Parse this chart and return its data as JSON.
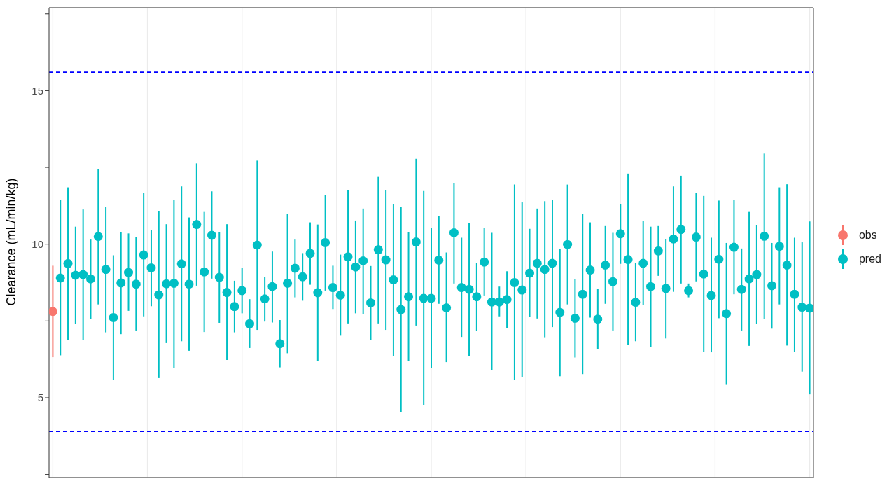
{
  "chart_data": {
    "type": "scatter",
    "ylabel": "Clearance (mL/min/kg)",
    "categories": [
      null,
      null,
      null,
      null,
      null,
      null,
      null,
      null,
      null,
      null,
      null,
      null,
      null,
      null,
      null,
      null,
      null,
      null,
      null,
      null,
      null,
      null,
      null,
      null,
      null,
      null,
      null,
      null,
      null,
      null,
      null,
      null,
      null,
      null,
      null,
      null,
      null,
      null,
      null,
      null,
      null,
      null,
      null,
      null,
      null,
      null,
      null,
      null,
      null,
      null,
      null,
      null,
      null,
      null,
      null,
      null,
      null,
      null,
      null,
      null,
      null,
      null,
      null,
      null,
      null,
      null,
      null,
      null,
      null,
      null,
      null,
      null,
      null,
      null,
      null,
      null,
      null,
      null,
      null,
      null,
      null,
      null,
      null,
      null,
      null,
      null,
      null,
      null,
      null,
      null,
      null,
      null,
      null,
      null,
      null,
      null,
      null,
      null,
      null,
      null,
      null
    ],
    "ylim": [
      2.4,
      17.7
    ],
    "yticks": [
      {
        "value": 2.5,
        "label": null
      },
      5,
      {
        "value": 7.5,
        "label": null
      },
      10,
      {
        "value": 12.5,
        "label": null
      },
      15,
      {
        "value": 17.5,
        "label": null
      }
    ],
    "grid": true,
    "legend": "right",
    "marker": "circle",
    "ref_lines": [
      {
        "axis": "y",
        "value": 15.6,
        "color": "#0000ff",
        "line_style": "dashed"
      },
      {
        "axis": "y",
        "value": 3.9,
        "color": "#0000ff",
        "line_style": "dashed"
      }
    ],
    "series": [
      {
        "name": "obs",
        "color": "#f8766d",
        "values": [
          7.81,
          null,
          null,
          null,
          null,
          null,
          null,
          null,
          null,
          null,
          null,
          null,
          null,
          null,
          null,
          null,
          null,
          null,
          null,
          null,
          null,
          null,
          null,
          null,
          null,
          null,
          null,
          null,
          null,
          null,
          null,
          null,
          null,
          null,
          null,
          null,
          null,
          null,
          null,
          null,
          null,
          null,
          null,
          null,
          null,
          null,
          null,
          null,
          null,
          null,
          null,
          null,
          null,
          null,
          null,
          null,
          null,
          null,
          null,
          null,
          null,
          null,
          null,
          null,
          null,
          null,
          null,
          null,
          null,
          null,
          null,
          null,
          null,
          null,
          null,
          null,
          null,
          null,
          null,
          null,
          null,
          null,
          null,
          null,
          null,
          null,
          null,
          null,
          null,
          null,
          null,
          null,
          null,
          null,
          null,
          null,
          null,
          null,
          null,
          null,
          null
        ],
        "errors": [
          [
            6.32,
            9.3
          ],
          null,
          null,
          null,
          null,
          null,
          null,
          null,
          null,
          null,
          null,
          null,
          null,
          null,
          null,
          null,
          null,
          null,
          null,
          null,
          null,
          null,
          null,
          null,
          null,
          null,
          null,
          null,
          null,
          null,
          null,
          null,
          null,
          null,
          null,
          null,
          null,
          null,
          null,
          null,
          null,
          null,
          null,
          null,
          null,
          null,
          null,
          null,
          null,
          null,
          null,
          null,
          null,
          null,
          null,
          null,
          null,
          null,
          null,
          null,
          null,
          null,
          null,
          null,
          null,
          null,
          null,
          null,
          null,
          null,
          null,
          null,
          null,
          null,
          null,
          null,
          null,
          null,
          null,
          null,
          null,
          null,
          null,
          null,
          null,
          null,
          null,
          null,
          null,
          null,
          null,
          null,
          null,
          null,
          null,
          null,
          null,
          null,
          null,
          null,
          null
        ]
      },
      {
        "name": "pred",
        "color": "#00bfc4",
        "values": [
          null,
          8.9,
          9.37,
          8.99,
          9.01,
          8.87,
          10.25,
          9.18,
          7.61,
          8.74,
          9.08,
          8.7,
          9.65,
          9.23,
          8.35,
          8.71,
          8.73,
          9.36,
          8.7,
          10.64,
          9.1,
          10.29,
          8.92,
          8.43,
          7.97,
          8.49,
          7.41,
          9.97,
          8.22,
          8.62,
          6.76,
          8.73,
          9.22,
          8.94,
          9.7,
          8.42,
          10.05,
          8.59,
          8.34,
          9.59,
          9.26,
          9.46,
          8.09,
          9.82,
          9.49,
          8.84,
          7.87,
          8.29,
          10.07,
          8.24,
          8.24,
          9.48,
          7.93,
          10.37,
          8.59,
          8.53,
          8.29,
          9.42,
          8.12,
          8.12,
          8.2,
          8.75,
          8.51,
          9.06,
          9.38,
          9.18,
          9.38,
          7.78,
          9.99,
          7.59,
          8.37,
          9.16,
          7.56,
          9.32,
          8.78,
          10.34,
          9.5,
          8.11,
          9.38,
          8.62,
          9.78,
          8.56,
          10.17,
          10.48,
          8.49,
          10.23,
          9.03,
          8.33,
          9.51,
          7.74,
          9.9,
          8.53,
          8.87,
          9.01,
          10.26,
          8.65,
          9.93,
          9.32,
          8.37,
          7.95,
          7.92
        ],
        "errors": [
          null,
          [
            6.38,
            11.43
          ],
          [
            6.88,
            11.85
          ],
          [
            7.41,
            10.57
          ],
          [
            6.87,
            11.13
          ],
          [
            7.57,
            10.15
          ],
          [
            8.04,
            12.44
          ],
          [
            7.13,
            11.21
          ],
          [
            5.57,
            9.64
          ],
          [
            7.07,
            10.39
          ],
          [
            7.83,
            10.35
          ],
          [
            7.19,
            10.23
          ],
          [
            7.65,
            11.66
          ],
          [
            7.98,
            10.47
          ],
          [
            5.64,
            11.07
          ],
          [
            6.78,
            10.65
          ],
          [
            5.97,
            11.43
          ],
          [
            6.84,
            11.88
          ],
          [
            6.53,
            10.87
          ],
          [
            8.65,
            12.63
          ],
          [
            7.14,
            11.05
          ],
          [
            8.88,
            11.72
          ],
          [
            7.44,
            10.39
          ],
          [
            6.23,
            10.65
          ],
          [
            7.13,
            8.81
          ],
          [
            7.75,
            9.23
          ],
          [
            6.62,
            8.21
          ],
          [
            7.21,
            12.72
          ],
          [
            7.48,
            8.93
          ],
          [
            7.45,
            9.76
          ],
          [
            5.99,
            7.53
          ],
          [
            6.45,
            10.99
          ],
          [
            8.27,
            10.15
          ],
          [
            8.16,
            9.71
          ],
          [
            8.68,
            10.71
          ],
          [
            6.2,
            10.64
          ],
          [
            8.49,
            11.59
          ],
          [
            7.89,
            9.3
          ],
          [
            7.02,
            9.66
          ],
          [
            7.42,
            11.75
          ],
          [
            7.75,
            10.77
          ],
          [
            7.73,
            11.16
          ],
          [
            6.89,
            9.29
          ],
          [
            7.42,
            12.19
          ],
          [
            7.21,
            11.77
          ],
          [
            6.36,
            11.31
          ],
          [
            4.54,
            11.21
          ],
          [
            6.2,
            10.39
          ],
          [
            7.35,
            12.78
          ],
          [
            4.76,
            11.73
          ],
          [
            5.97,
            10.52
          ],
          [
            8.06,
            10.91
          ],
          [
            6.16,
            9.73
          ],
          [
            8.72,
            11.99
          ],
          [
            6.98,
            10.21
          ],
          [
            6.36,
            10.7
          ],
          [
            7.17,
            9.4
          ],
          [
            8.33,
            10.53
          ],
          [
            5.89,
            10.37
          ],
          [
            7.65,
            8.62
          ],
          [
            7.26,
            9.12
          ],
          [
            5.57,
            11.94
          ],
          [
            5.68,
            11.36
          ],
          [
            7.63,
            10.5
          ],
          [
            7.58,
            11.16
          ],
          [
            6.97,
            11.4
          ],
          [
            7.3,
            11.43
          ],
          [
            5.7,
            9.85
          ],
          [
            8.04,
            11.94
          ],
          [
            6.31,
            8.87
          ],
          [
            5.77,
            10.98
          ],
          [
            7.61,
            10.71
          ],
          [
            6.58,
            8.55
          ],
          [
            8.06,
            10.59
          ],
          [
            7.19,
            10.37
          ],
          [
            9.36,
            11.31
          ],
          [
            6.71,
            12.3
          ],
          [
            6.84,
            9.4
          ],
          [
            8.01,
            10.76
          ],
          [
            6.66,
            10.57
          ],
          [
            8.97,
            10.59
          ],
          [
            6.93,
            10.17
          ],
          [
            8.45,
            11.88
          ],
          [
            8.72,
            12.23
          ],
          [
            8.27,
            8.72
          ],
          [
            8.79,
            11.66
          ],
          [
            6.49,
            11.57
          ],
          [
            6.48,
            10.21
          ],
          [
            7.59,
            11.42
          ],
          [
            5.42,
            10.04
          ],
          [
            8.37,
            11.44
          ],
          [
            7.19,
            9.86
          ],
          [
            6.69,
            11.05
          ],
          [
            7.4,
            10.63
          ],
          [
            7.57,
            12.95
          ],
          [
            7.25,
            10.04
          ],
          [
            8.04,
            11.85
          ],
          [
            6.7,
            11.95
          ],
          [
            6.5,
            10.21
          ],
          [
            5.85,
            10.06
          ],
          [
            5.11,
            10.74
          ]
        ]
      }
    ]
  }
}
